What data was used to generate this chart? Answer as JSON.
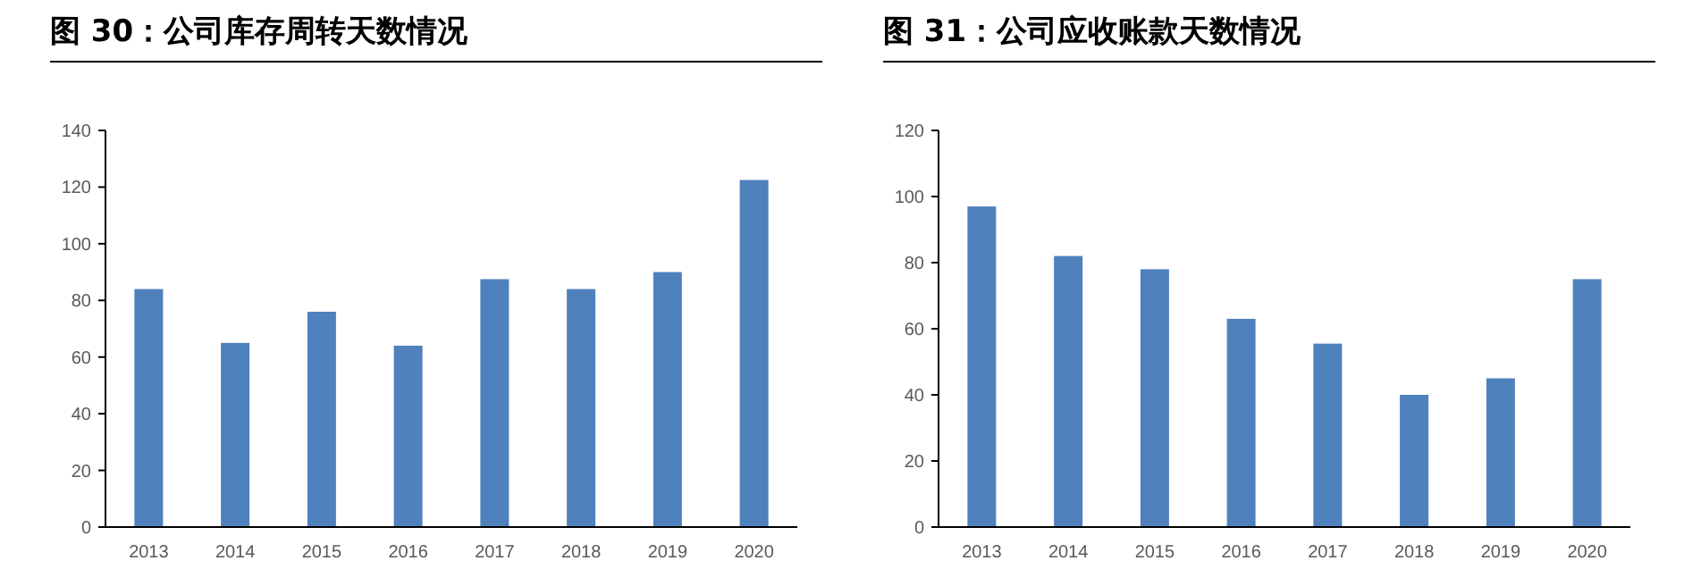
{
  "chart_data": [
    {
      "type": "bar",
      "title": "图 30：公司库存周转天数情况",
      "categories": [
        "2013",
        "2014",
        "2015",
        "2016",
        "2017",
        "2018",
        "2019",
        "2020"
      ],
      "values": [
        84,
        65,
        76,
        64,
        87.5,
        84,
        90,
        122.5
      ],
      "color": "#4f81bd",
      "ylim": [
        0,
        140
      ],
      "yticks": [
        0,
        20,
        40,
        60,
        80,
        100,
        120,
        140
      ]
    },
    {
      "type": "bar",
      "title": "图 31：公司应收账款天数情况",
      "categories": [
        "2013",
        "2014",
        "2015",
        "2016",
        "2017",
        "2018",
        "2019",
        "2020"
      ],
      "values": [
        97,
        82,
        78,
        63,
        55.5,
        40,
        45,
        75
      ],
      "color": "#4f81bd",
      "ylim": [
        0,
        120
      ],
      "yticks": [
        0,
        20,
        40,
        60,
        80,
        100,
        120
      ]
    }
  ]
}
